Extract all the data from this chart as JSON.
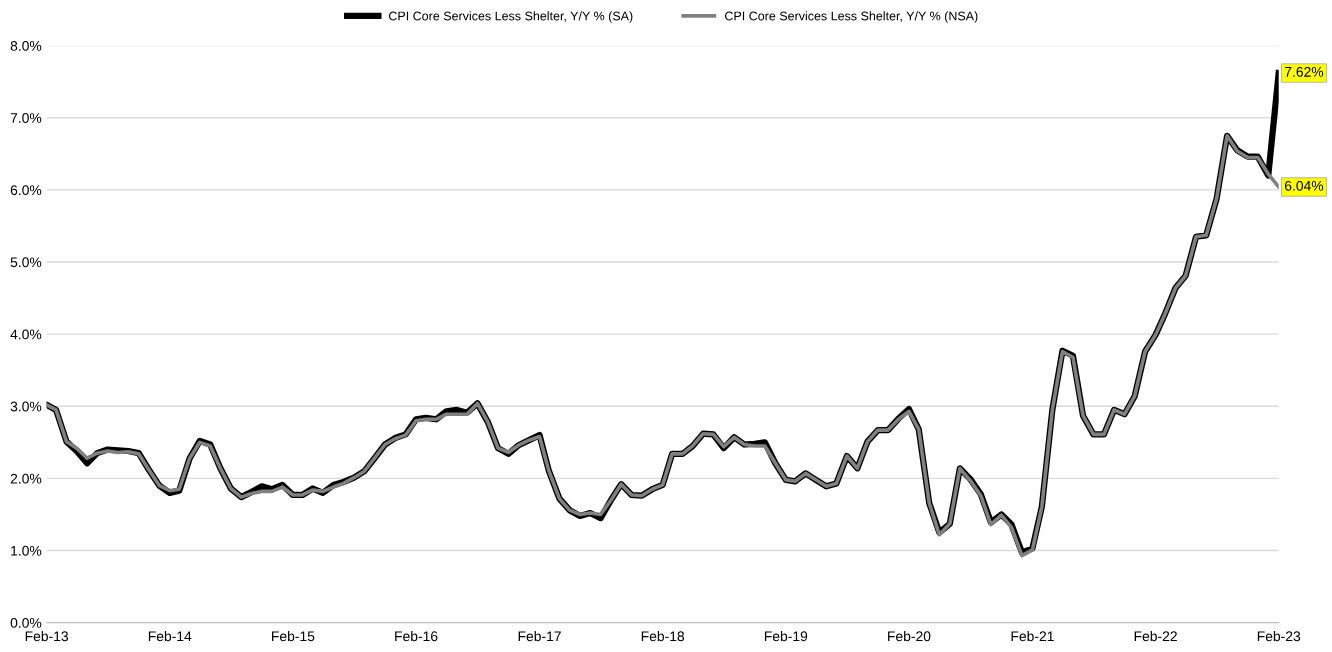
{
  "chart_data": {
    "type": "line",
    "x": [
      "2013-02",
      "2013-03",
      "2013-04",
      "2013-05",
      "2013-06",
      "2013-07",
      "2013-08",
      "2013-09",
      "2013-10",
      "2013-11",
      "2013-12",
      "2014-01",
      "2014-02",
      "2014-03",
      "2014-04",
      "2014-05",
      "2014-06",
      "2014-07",
      "2014-08",
      "2014-09",
      "2014-10",
      "2014-11",
      "2014-12",
      "2015-01",
      "2015-02",
      "2015-03",
      "2015-04",
      "2015-05",
      "2015-06",
      "2015-07",
      "2015-08",
      "2015-09",
      "2015-10",
      "2015-11",
      "2015-12",
      "2016-01",
      "2016-02",
      "2016-03",
      "2016-04",
      "2016-05",
      "2016-06",
      "2016-07",
      "2016-08",
      "2016-09",
      "2016-10",
      "2016-11",
      "2016-12",
      "2017-01",
      "2017-02",
      "2017-03",
      "2017-04",
      "2017-05",
      "2017-06",
      "2017-07",
      "2017-08",
      "2017-09",
      "2017-10",
      "2017-11",
      "2017-12",
      "2018-01",
      "2018-02",
      "2018-03",
      "2018-04",
      "2018-05",
      "2018-06",
      "2018-07",
      "2018-08",
      "2018-09",
      "2018-10",
      "2018-11",
      "2018-12",
      "2019-01",
      "2019-02",
      "2019-03",
      "2019-04",
      "2019-05",
      "2019-06",
      "2019-07",
      "2019-08",
      "2019-09",
      "2019-10",
      "2019-11",
      "2019-12",
      "2020-01",
      "2020-02",
      "2020-03",
      "2020-04",
      "2020-05",
      "2020-06",
      "2020-07",
      "2020-08",
      "2020-09",
      "2020-10",
      "2020-11",
      "2020-12",
      "2021-01",
      "2021-02",
      "2021-03",
      "2021-04",
      "2021-05",
      "2021-06",
      "2021-07",
      "2021-08",
      "2021-09",
      "2021-10",
      "2021-11",
      "2021-12",
      "2022-01",
      "2022-02",
      "2022-03",
      "2022-04",
      "2022-05",
      "2022-06",
      "2022-07",
      "2022-08",
      "2022-09",
      "2022-10",
      "2022-11",
      "2022-12",
      "2023-01",
      "2023-02"
    ],
    "series": [
      {
        "name": "CPI Core Services Less Shelter, Y/Y % (SA)",
        "color": "#000000",
        "values": [
          3.02,
          2.95,
          2.51,
          2.38,
          2.21,
          2.35,
          2.4,
          2.39,
          2.38,
          2.35,
          2.12,
          1.9,
          1.8,
          1.83,
          2.28,
          2.52,
          2.47,
          2.14,
          1.86,
          1.74,
          1.81,
          1.89,
          1.85,
          1.91,
          1.77,
          1.77,
          1.86,
          1.8,
          1.91,
          1.95,
          2.01,
          2.1,
          2.28,
          2.47,
          2.56,
          2.61,
          2.82,
          2.84,
          2.82,
          2.93,
          2.95,
          2.91,
          3.04,
          2.78,
          2.42,
          2.34,
          2.46,
          2.53,
          2.6,
          2.1,
          1.72,
          1.56,
          1.48,
          1.52,
          1.45,
          1.7,
          1.92,
          1.77,
          1.76,
          1.85,
          1.91,
          2.34,
          2.34,
          2.45,
          2.62,
          2.61,
          2.42,
          2.57,
          2.47,
          2.48,
          2.5,
          2.21,
          1.98,
          1.96,
          2.07,
          1.98,
          1.89,
          1.93,
          2.31,
          2.14,
          2.51,
          2.67,
          2.67,
          2.83,
          2.96,
          2.68,
          1.66,
          1.25,
          1.37,
          2.14,
          1.99,
          1.78,
          1.39,
          1.5,
          1.36,
          0.97,
          1.03,
          1.61,
          2.95,
          3.77,
          3.7,
          2.87,
          2.61,
          2.61,
          2.95,
          2.89,
          3.14,
          3.76,
          3.99,
          4.28,
          4.64,
          4.81,
          5.35,
          5.37,
          5.88,
          6.75,
          6.55,
          6.46,
          6.46,
          6.2,
          7.62
        ]
      },
      {
        "name": "CPI Core Services Less Shelter, Y/Y % (NSA)",
        "color": "#808080",
        "values": [
          3.02,
          2.95,
          2.51,
          2.42,
          2.28,
          2.35,
          2.38,
          2.36,
          2.37,
          2.34,
          2.12,
          1.9,
          1.83,
          1.85,
          2.28,
          2.5,
          2.45,
          2.14,
          1.86,
          1.74,
          1.79,
          1.82,
          1.82,
          1.88,
          1.77,
          1.77,
          1.84,
          1.82,
          1.88,
          1.93,
          2.01,
          2.1,
          2.28,
          2.47,
          2.55,
          2.6,
          2.8,
          2.82,
          2.82,
          2.89,
          2.89,
          2.89,
          3.04,
          2.78,
          2.42,
          2.36,
          2.46,
          2.53,
          2.58,
          2.1,
          1.72,
          1.56,
          1.5,
          1.52,
          1.5,
          1.7,
          1.92,
          1.77,
          1.76,
          1.85,
          1.91,
          2.34,
          2.34,
          2.45,
          2.62,
          2.61,
          2.44,
          2.57,
          2.47,
          2.45,
          2.45,
          2.21,
          1.98,
          1.96,
          2.07,
          1.98,
          1.89,
          1.93,
          2.31,
          2.14,
          2.51,
          2.67,
          2.67,
          2.82,
          2.93,
          2.68,
          1.66,
          1.22,
          1.37,
          2.14,
          1.97,
          1.76,
          1.36,
          1.49,
          1.32,
          0.93,
          1.01,
          1.61,
          2.95,
          3.76,
          3.68,
          2.87,
          2.61,
          2.61,
          2.95,
          2.89,
          3.14,
          3.76,
          3.99,
          4.28,
          4.64,
          4.81,
          5.35,
          5.37,
          5.88,
          6.75,
          6.54,
          6.45,
          6.45,
          6.22,
          6.04
        ]
      }
    ],
    "ylim": [
      0,
      8
    ],
    "yticks": [
      {
        "value": 0,
        "label": "0.0%"
      },
      {
        "value": 1,
        "label": "1.0%"
      },
      {
        "value": 2,
        "label": "2.0%"
      },
      {
        "value": 3,
        "label": "3.0%"
      },
      {
        "value": 4,
        "label": "4.0%"
      },
      {
        "value": 5,
        "label": "5.0%"
      },
      {
        "value": 6,
        "label": "6.0%"
      },
      {
        "value": 7,
        "label": "7.0%"
      },
      {
        "value": 8,
        "label": "8.0%"
      }
    ],
    "xlim": [
      "2013-02",
      "2023-02"
    ],
    "xticks": [
      {
        "value": "2013-02",
        "label": "Feb-13"
      },
      {
        "value": "2014-02",
        "label": "Feb-14"
      },
      {
        "value": "2015-02",
        "label": "Feb-15"
      },
      {
        "value": "2016-02",
        "label": "Feb-16"
      },
      {
        "value": "2017-02",
        "label": "Feb-17"
      },
      {
        "value": "2018-02",
        "label": "Feb-18"
      },
      {
        "value": "2019-02",
        "label": "Feb-19"
      },
      {
        "value": "2020-02",
        "label": "Feb-20"
      },
      {
        "value": "2021-02",
        "label": "Feb-21"
      },
      {
        "value": "2022-02",
        "label": "Feb-22"
      },
      {
        "value": "2023-02",
        "label": "Feb-23"
      }
    ],
    "annotations": [
      {
        "text": "7.62%",
        "x": "2023-02",
        "y": 7.62
      },
      {
        "text": "6.04%",
        "x": "2023-02",
        "y": 6.04
      }
    ],
    "grid": "y",
    "legend": "top",
    "marker": "none",
    "line_style": "solid"
  }
}
